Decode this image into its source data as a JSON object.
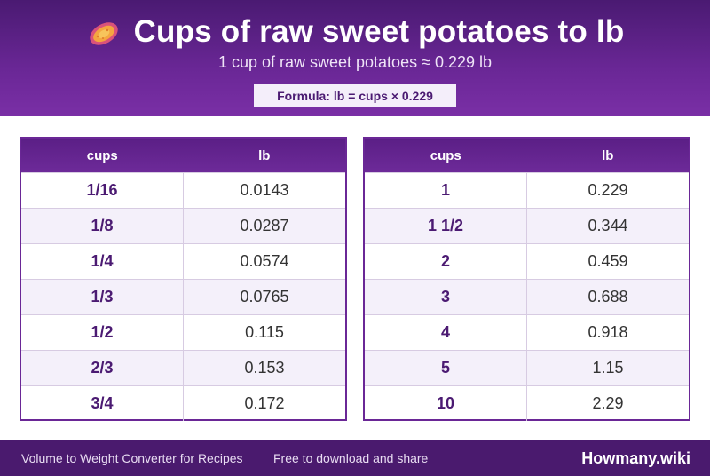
{
  "header": {
    "icon": "sweet-potato-icon",
    "title": "Cups of raw sweet potatoes to lb",
    "subtitle": "1 cup of raw sweet potatoes ≈ 0.229 lb",
    "formula": "Formula: lb = cups × 0.229"
  },
  "tables": [
    {
      "headers": [
        "cups",
        "lb"
      ],
      "rows": [
        [
          "1/16",
          "0.0143"
        ],
        [
          "1/8",
          "0.0287"
        ],
        [
          "1/4",
          "0.0574"
        ],
        [
          "1/3",
          "0.0765"
        ],
        [
          "1/2",
          "0.115"
        ],
        [
          "2/3",
          "0.153"
        ],
        [
          "3/4",
          "0.172"
        ]
      ]
    },
    {
      "headers": [
        "cups",
        "lb"
      ],
      "rows": [
        [
          "1",
          "0.229"
        ],
        [
          "1 1/2",
          "0.344"
        ],
        [
          "2",
          "0.459"
        ],
        [
          "3",
          "0.688"
        ],
        [
          "4",
          "0.918"
        ],
        [
          "5",
          "1.15"
        ],
        [
          "10",
          "2.29"
        ]
      ]
    }
  ],
  "footer": {
    "left_text": "Volume to Weight Converter for Recipes",
    "middle_text": "Free to download and share",
    "brand": "Howmany.wiki"
  },
  "colors": {
    "header_purple": "#6a2796",
    "footer_purple": "#4a1a6e",
    "accent_text": "#4b1a72"
  }
}
